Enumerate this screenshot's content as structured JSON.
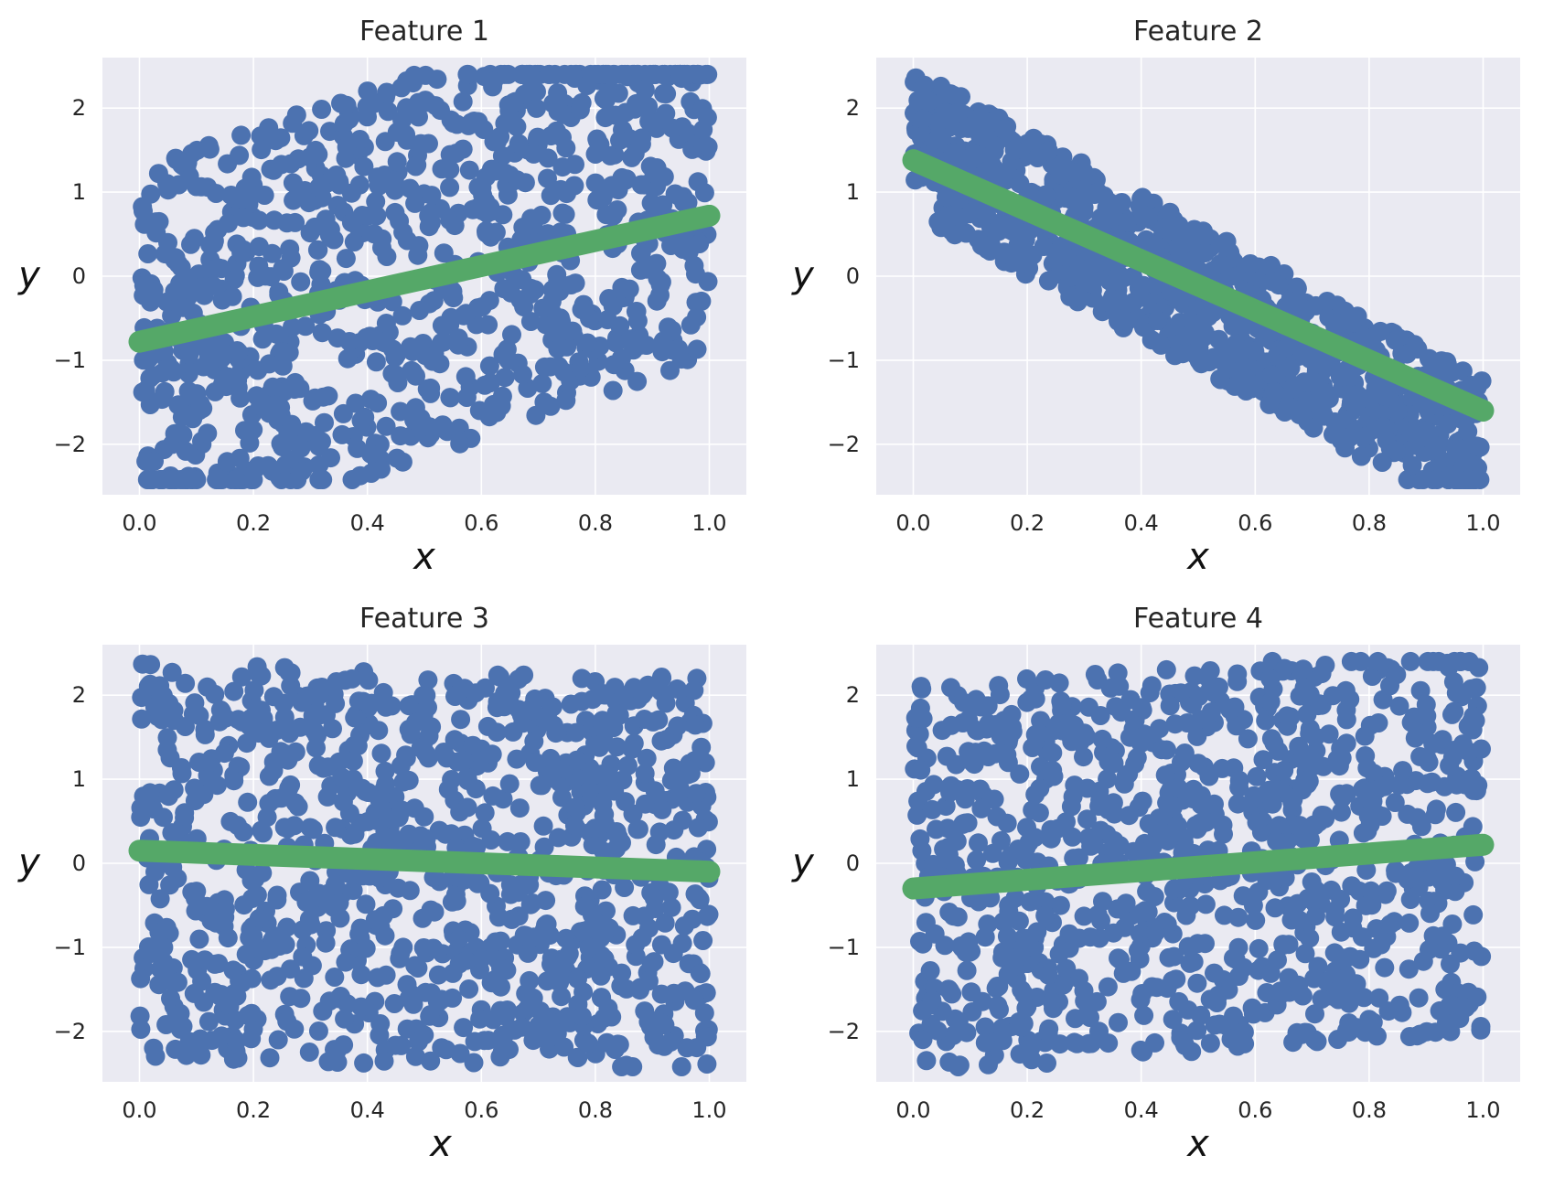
{
  "colors": {
    "background": "#ffffff",
    "plot_bg": "#eaeaf2",
    "grid": "#ffffff",
    "scatter": "#4c72b0",
    "fit_line": "#55a868",
    "text": "#262626"
  },
  "chart_data": [
    {
      "type": "scatter",
      "title": "Feature 1",
      "xlabel": "x",
      "ylabel": "y",
      "xlim": [
        -0.065,
        1.065
      ],
      "ylim": [
        -2.6,
        2.6
      ],
      "xticks": [
        0.0,
        0.2,
        0.4,
        0.6,
        0.8,
        1.0
      ],
      "xtick_labels": [
        "0.0",
        "0.2",
        "0.4",
        "0.6",
        "0.8",
        "1.0"
      ],
      "yticks": [
        2,
        1,
        0,
        -1,
        -2
      ],
      "ytick_labels": [
        "2",
        "1",
        "0",
        "−1",
        "−2"
      ],
      "grid": true,
      "n_points": 1000,
      "point_trend": {
        "slope": 2.3,
        "intercept": -1.0,
        "spread": 2.3
      },
      "fit_line": {
        "x": [
          0.0,
          1.0
        ],
        "y": [
          -0.78,
          0.72
        ]
      }
    },
    {
      "type": "scatter",
      "title": "Feature 2",
      "xlabel": "x",
      "ylabel": "y",
      "xlim": [
        -0.065,
        1.065
      ],
      "ylim": [
        -2.6,
        2.6
      ],
      "xticks": [
        0.0,
        0.2,
        0.4,
        0.6,
        0.8,
        1.0
      ],
      "xtick_labels": [
        "0.0",
        "0.2",
        "0.4",
        "0.6",
        "0.8",
        "1.0"
      ],
      "yticks": [
        2,
        1,
        0,
        -1,
        -2
      ],
      "ytick_labels": [
        "2",
        "1",
        "0",
        "−1",
        "−2"
      ],
      "grid": true,
      "n_points": 1000,
      "point_trend": {
        "slope": -3.7,
        "intercept": 1.6,
        "spread": 0.85
      },
      "fit_line": {
        "x": [
          0.0,
          1.0
        ],
        "y": [
          1.38,
          -1.6
        ]
      }
    },
    {
      "type": "scatter",
      "title": "Feature 3",
      "xlabel": "x",
      "ylabel": "y",
      "xlim": [
        -0.065,
        1.065
      ],
      "ylim": [
        -2.6,
        2.6
      ],
      "xticks": [
        0.0,
        0.2,
        0.4,
        0.6,
        0.8,
        1.0
      ],
      "xtick_labels": [
        "0.0",
        "0.2",
        "0.4",
        "0.6",
        "0.8",
        "1.0"
      ],
      "yticks": [
        2,
        1,
        0,
        -1,
        -2
      ],
      "ytick_labels": [
        "2",
        "1",
        "0",
        "−1",
        "−2"
      ],
      "grid": true,
      "n_points": 1000,
      "point_trend": {
        "slope": -0.2,
        "intercept": 0.05,
        "spread": 2.35
      },
      "fit_line": {
        "x": [
          0.0,
          1.0
        ],
        "y": [
          0.15,
          -0.1
        ]
      }
    },
    {
      "type": "scatter",
      "title": "Feature 4",
      "xlabel": "x",
      "ylabel": "y",
      "xlim": [
        -0.065,
        1.065
      ],
      "ylim": [
        -2.6,
        2.6
      ],
      "xticks": [
        0.0,
        0.2,
        0.4,
        0.6,
        0.8,
        1.0
      ],
      "xtick_labels": [
        "0.0",
        "0.2",
        "0.4",
        "0.6",
        "0.8",
        "1.0"
      ],
      "yticks": [
        2,
        1,
        0,
        -1,
        -2
      ],
      "ytick_labels": [
        "2",
        "1",
        "0",
        "−1",
        "−2"
      ],
      "grid": true,
      "n_points": 1000,
      "point_trend": {
        "slope": 0.5,
        "intercept": -0.2,
        "spread": 2.3
      },
      "fit_line": {
        "x": [
          0.0,
          1.0
        ],
        "y": [
          -0.3,
          0.22
        ]
      }
    }
  ]
}
